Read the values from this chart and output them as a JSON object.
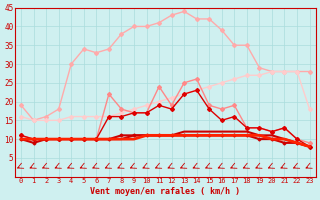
{
  "xlabel": "Vent moyen/en rafales ( km/h )",
  "background_color": "#cff0f0",
  "grid_color": "#aadddd",
  "x": [
    0,
    1,
    2,
    3,
    4,
    5,
    6,
    7,
    8,
    9,
    10,
    11,
    12,
    13,
    14,
    15,
    16,
    17,
    18,
    19,
    20,
    21,
    22,
    23
  ],
  "line_pink_upper": [
    19,
    15,
    16,
    18,
    30,
    34,
    33,
    34,
    38,
    40,
    40,
    41,
    43,
    44,
    42,
    42,
    39,
    35,
    35,
    29,
    28,
    28,
    28,
    28
  ],
  "line_pink_lower": [
    16,
    15,
    15,
    15,
    16,
    16,
    16,
    16,
    17,
    18,
    19,
    20,
    21,
    22,
    23,
    24,
    25,
    26,
    27,
    27,
    28,
    28,
    28,
    18
  ],
  "line_medium1": [
    11,
    10,
    10,
    10,
    10,
    10,
    10,
    22,
    18,
    17,
    17,
    24,
    19,
    25,
    26,
    19,
    18,
    19,
    13,
    13,
    12,
    13,
    10,
    9
  ],
  "line_medium2": [
    11,
    10,
    10,
    10,
    10,
    10,
    10,
    16,
    16,
    17,
    17,
    19,
    18,
    22,
    23,
    18,
    15,
    16,
    13,
    13,
    12,
    13,
    10,
    8
  ],
  "line_flat1": [
    10,
    9,
    10,
    10,
    10,
    10,
    10,
    10,
    11,
    11,
    11,
    11,
    11,
    11,
    11,
    11,
    11,
    11,
    11,
    10,
    10,
    9,
    9,
    8
  ],
  "line_flat2": [
    10,
    10,
    10,
    10,
    10,
    10,
    10,
    10,
    10,
    11,
    11,
    11,
    11,
    12,
    12,
    12,
    12,
    12,
    12,
    11,
    11,
    10,
    9,
    8
  ],
  "line_flat3": [
    10,
    10,
    10,
    10,
    10,
    10,
    10,
    10,
    10,
    10,
    11,
    11,
    11,
    11,
    11,
    11,
    11,
    11,
    11,
    11,
    10,
    10,
    9,
    8
  ],
  "ylim": [
    0,
    45
  ],
  "yticks": [
    5,
    10,
    15,
    20,
    25,
    30,
    35,
    40,
    45
  ],
  "color_light_pink": "#ffaaaa",
  "color_medium_pink": "#ff8888",
  "color_pale_pink": "#ffcccc",
  "color_red_dark": "#cc0000",
  "color_red": "#dd0000",
  "color_red_bright": "#ff2200"
}
